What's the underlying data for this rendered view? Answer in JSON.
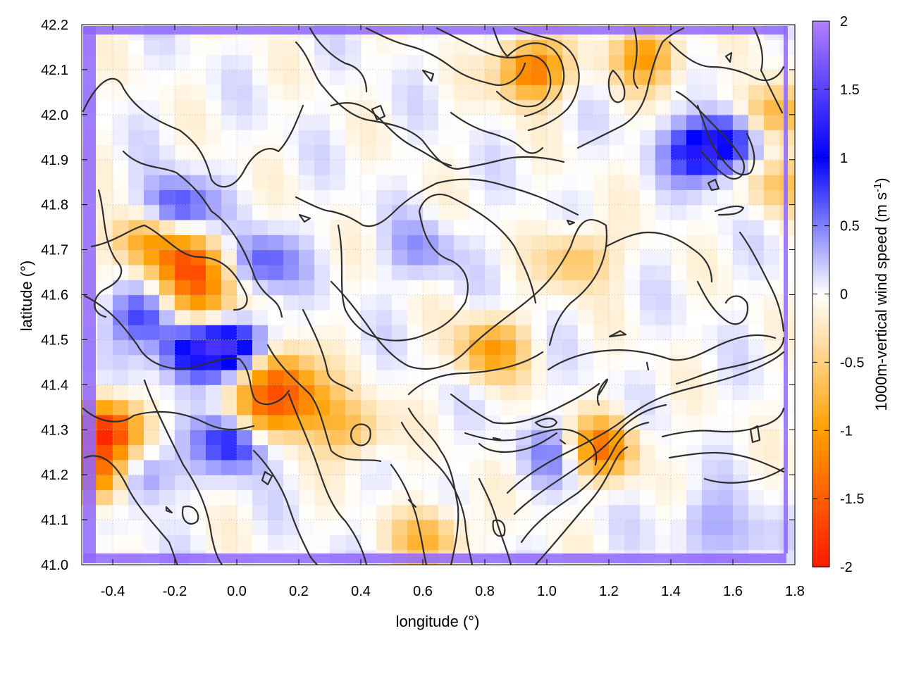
{
  "chart_data": {
    "type": "heatmap",
    "title": "",
    "xlabel": "longitude (°)",
    "ylabel": "latitude (°)",
    "colorbar_label_main": "1000m-vertical wind speed (m s",
    "colorbar_label_sup": "-1",
    "colorbar_label_end": ")",
    "xlim": [
      -0.5,
      1.8
    ],
    "ylim": [
      41.0,
      42.2
    ],
    "clim": [
      -2,
      2
    ],
    "grid": true,
    "x_ticks": [
      "-0.4",
      "-0.2",
      "0.0",
      "0.2",
      "0.4",
      "0.6",
      "0.8",
      "1.0",
      "1.2",
      "1.4",
      "1.6",
      "1.8"
    ],
    "y_ticks": [
      "41.0",
      "41.1",
      "41.2",
      "41.3",
      "41.4",
      "41.5",
      "41.6",
      "41.7",
      "41.8",
      "41.9",
      "42.0",
      "42.1",
      "42.2"
    ],
    "colorbar_ticks": [
      "-2",
      "-1.5",
      "-1",
      "-0.5",
      "0",
      "0.5",
      "1",
      "1.5",
      "2"
    ],
    "colormap": [
      {
        "value": -2,
        "color": "#ff1a00"
      },
      {
        "value": -1,
        "color": "#ffa000"
      },
      {
        "value": 0,
        "color": "#ffffff"
      },
      {
        "value": 1,
        "color": "#0000ff"
      },
      {
        "value": 2,
        "color": "#b280ff"
      }
    ],
    "domain_border_value": 1.8,
    "features": [
      {
        "lon": -0.15,
        "lat": 41.67,
        "w": -1.3
      },
      {
        "lon": -0.3,
        "lat": 41.72,
        "w": -1.0
      },
      {
        "lon": -0.12,
        "lat": 41.59,
        "w": -1.1
      },
      {
        "lon": -0.42,
        "lat": 41.3,
        "w": -1.8
      },
      {
        "lon": -0.44,
        "lat": 41.2,
        "w": -1.6
      },
      {
        "lon": 0.12,
        "lat": 41.42,
        "w": -1.3
      },
      {
        "lon": 0.08,
        "lat": 41.33,
        "w": -1.1
      },
      {
        "lon": 0.22,
        "lat": 41.36,
        "w": -0.9
      },
      {
        "lon": 0.82,
        "lat": 41.48,
        "w": -1.0
      },
      {
        "lon": 0.95,
        "lat": 42.1,
        "w": -1.4
      },
      {
        "lon": 1.32,
        "lat": 42.13,
        "w": -1.0
      },
      {
        "lon": 1.17,
        "lat": 41.26,
        "w": -1.4
      },
      {
        "lon": 1.72,
        "lat": 42.0,
        "w": -1.0
      },
      {
        "lon": 1.1,
        "lat": 41.68,
        "w": -0.7
      },
      {
        "lon": 0.62,
        "lat": 41.06,
        "w": -0.8
      },
      {
        "lon": 0.37,
        "lat": 41.3,
        "w": -0.7
      },
      {
        "lon": 1.75,
        "lat": 41.85,
        "w": -0.6
      },
      {
        "lon": -0.2,
        "lat": 41.79,
        "w": 0.9
      },
      {
        "lon": 0.0,
        "lat": 41.48,
        "w": 1.2
      },
      {
        "lon": -0.15,
        "lat": 41.47,
        "w": 1.0
      },
      {
        "lon": 0.0,
        "lat": 41.28,
        "w": 1.2
      },
      {
        "lon": -0.3,
        "lat": 41.55,
        "w": 0.8
      },
      {
        "lon": -0.33,
        "lat": 41.2,
        "w": 0.9
      },
      {
        "lon": 1.5,
        "lat": 41.92,
        "w": 1.1
      },
      {
        "lon": 1.6,
        "lat": 41.95,
        "w": 0.8
      },
      {
        "lon": 0.08,
        "lat": 41.67,
        "w": 0.7
      },
      {
        "lon": 1.05,
        "lat": 41.25,
        "w": 0.6
      },
      {
        "lon": 0.6,
        "lat": 41.7,
        "w": 0.4
      },
      {
        "lon": 1.5,
        "lat": 41.1,
        "w": 0.3
      },
      {
        "lon": 1.65,
        "lat": 41.05,
        "w": 0.3
      }
    ]
  }
}
